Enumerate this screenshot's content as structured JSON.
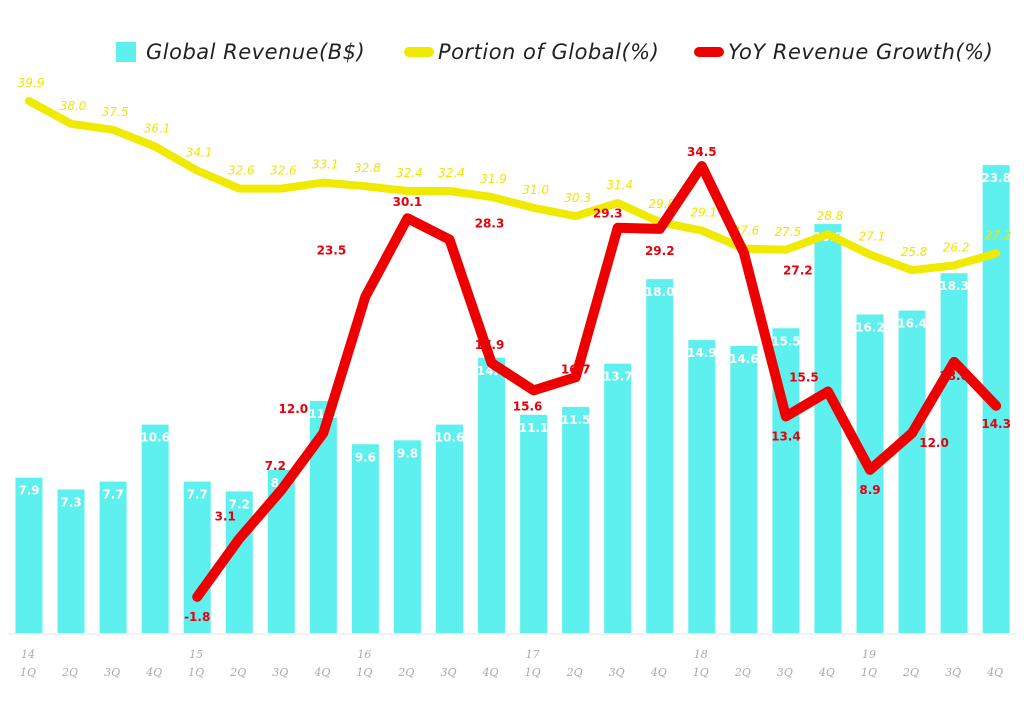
{
  "chart_data": {
    "type": "bar",
    "title": "",
    "xlabel": "",
    "ylabel": "",
    "grid": false,
    "legend_position": "top",
    "categories": [
      "1Q14",
      "2Q14",
      "3Q14",
      "4Q14",
      "1Q15",
      "2Q15",
      "3Q15",
      "4Q15",
      "1Q16",
      "2Q16",
      "3Q16",
      "4Q16",
      "1Q17",
      "2Q17",
      "3Q17",
      "4Q17",
      "1Q18",
      "2Q18",
      "3Q18",
      "4Q18",
      "1Q19",
      "2Q19",
      "3Q19",
      "4Q19"
    ],
    "tick_labels": {
      "quarters": [
        "1Q",
        "2Q",
        "3Q",
        "4Q",
        "1Q",
        "2Q",
        "3Q",
        "4Q",
        "1Q",
        "2Q",
        "3Q",
        "4Q",
        "1Q",
        "2Q",
        "3Q",
        "4Q",
        "1Q",
        "2Q",
        "3Q",
        "4Q",
        "1Q",
        "2Q",
        "3Q",
        "4Q"
      ],
      "years": [
        {
          "label": "14",
          "index": 0
        },
        {
          "label": "15",
          "index": 4
        },
        {
          "label": "16",
          "index": 8
        },
        {
          "label": "17",
          "index": 12
        },
        {
          "label": "18",
          "index": 16
        },
        {
          "label": "19",
          "index": 20
        }
      ]
    },
    "series": [
      {
        "name": "Global Revenue(B$)",
        "type": "bar",
        "color": "#5ef0ee",
        "values": [
          7.9,
          7.3,
          7.7,
          10.6,
          7.7,
          7.2,
          8.3,
          11.8,
          9.6,
          9.8,
          10.6,
          14.0,
          11.1,
          11.5,
          13.7,
          18.0,
          14.9,
          14.6,
          15.5,
          20.8,
          16.2,
          16.4,
          18.3,
          23.8
        ],
        "ylim": [
          0,
          23.8
        ]
      },
      {
        "name": "Portion of Global(%)",
        "type": "line",
        "color": "#f0ea00",
        "values": [
          39.9,
          38.0,
          37.5,
          36.1,
          34.1,
          32.6,
          32.6,
          33.1,
          32.8,
          32.4,
          32.4,
          31.9,
          31.0,
          30.3,
          31.4,
          29.8,
          29.1,
          27.6,
          27.5,
          28.8,
          27.1,
          25.8,
          26.2,
          27.2
        ]
      },
      {
        "name": "YoY Revenue Growth(%)",
        "type": "line",
        "color": "#ee0000",
        "start_index": 4,
        "values": [
          -1.8,
          3.1,
          7.2,
          12.0,
          23.5,
          30.1,
          28.3,
          17.9,
          15.6,
          16.7,
          29.3,
          29.2,
          34.5,
          27.2,
          13.4,
          15.5,
          8.9,
          12.0,
          18.0,
          14.3
        ]
      }
    ]
  }
}
